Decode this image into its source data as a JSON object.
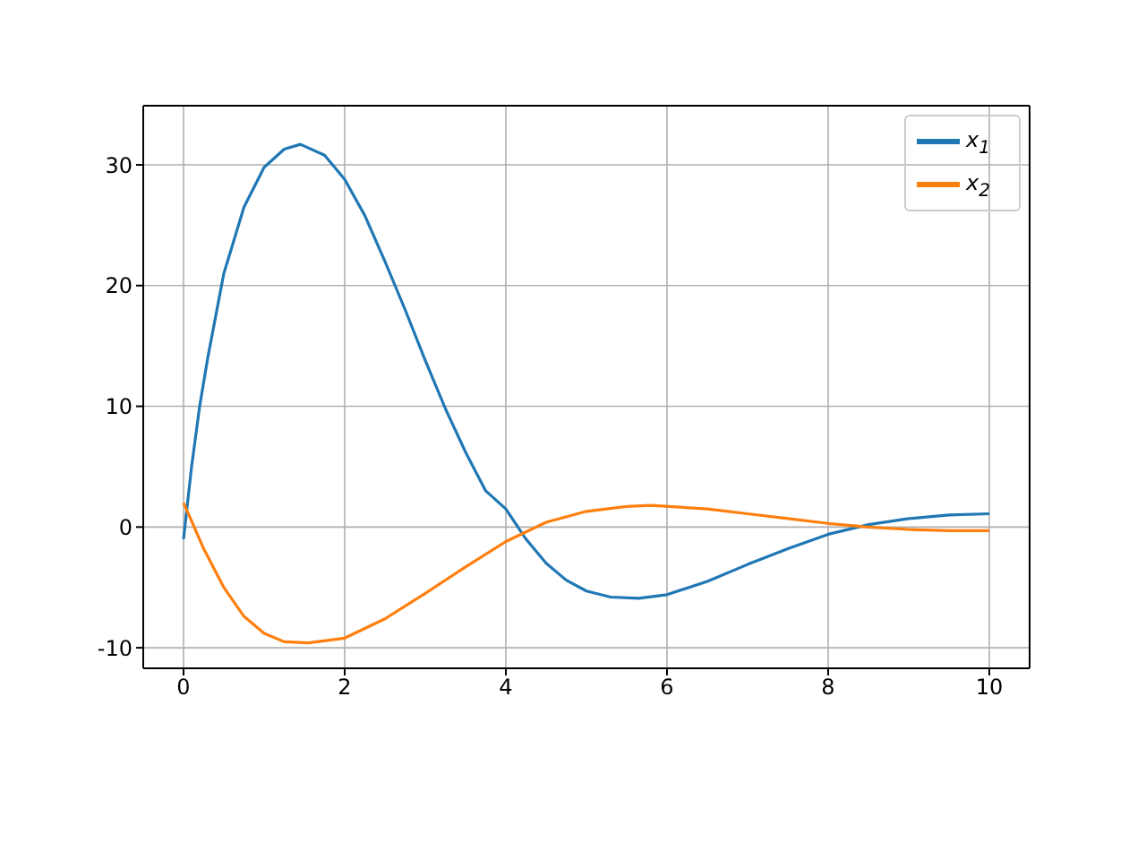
{
  "chart_data": {
    "type": "line",
    "xlim": [
      -0.5,
      10.5
    ],
    "ylim": [
      -11.7,
      34.9
    ],
    "xticks": [
      0,
      2,
      4,
      6,
      8,
      10
    ],
    "yticks": [
      -10,
      0,
      10,
      20,
      30
    ],
    "grid": true,
    "legend": "top right",
    "series": [
      {
        "name": "x$_{1}$",
        "color": "#1f77b4",
        "x": [
          0,
          0.1,
          0.2,
          0.3,
          0.5,
          0.75,
          1.0,
          1.25,
          1.45,
          1.75,
          2.0,
          2.25,
          2.5,
          2.75,
          3.0,
          3.25,
          3.5,
          3.75,
          4.0,
          4.25,
          4.5,
          4.75,
          5.0,
          5.3,
          5.65,
          6.0,
          6.5,
          7.0,
          7.5,
          8.0,
          8.5,
          9.0,
          9.5,
          10
        ],
        "values": [
          -1,
          5,
          10,
          14,
          21,
          26.5,
          29.8,
          31.3,
          31.7,
          30.8,
          28.8,
          25.8,
          22,
          18,
          13.8,
          9.8,
          6.2,
          3.0,
          1.5,
          -1,
          -3,
          -4.4,
          -5.3,
          -5.8,
          -5.9,
          -5.6,
          -4.5,
          -3.1,
          -1.8,
          -0.6,
          0.2,
          0.7,
          1.0,
          1.1
        ]
      },
      {
        "name": "x$_{2}$",
        "color": "#ff7f0e",
        "x": [
          0,
          0.1,
          0.25,
          0.5,
          0.75,
          1.0,
          1.25,
          1.55,
          2.0,
          2.5,
          3.0,
          3.5,
          4.0,
          4.5,
          5.0,
          5.5,
          5.8,
          6.5,
          7.0,
          7.5,
          8.0,
          8.5,
          9.0,
          9.5,
          10
        ],
        "values": [
          2,
          0.5,
          -1.8,
          -5,
          -7.4,
          -8.8,
          -9.5,
          -9.6,
          -9.2,
          -7.6,
          -5.5,
          -3.3,
          -1.2,
          0.4,
          1.3,
          1.7,
          1.8,
          1.5,
          1.1,
          0.7,
          0.3,
          0,
          -0.2,
          -0.3,
          -0.3
        ]
      }
    ]
  }
}
